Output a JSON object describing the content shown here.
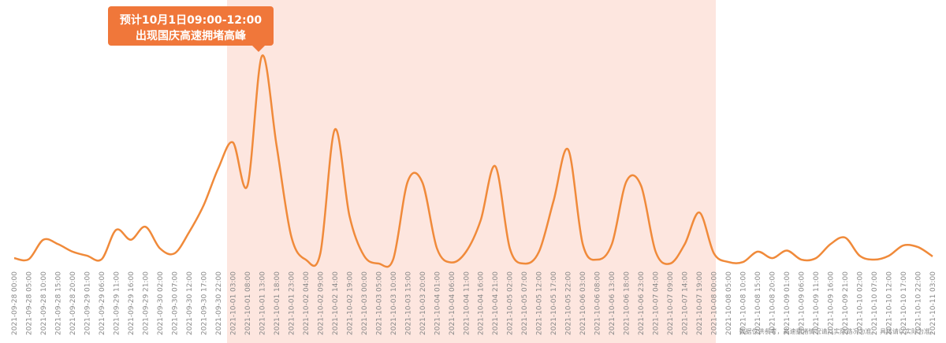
{
  "chart_data": {
    "type": "line",
    "annotation": [
      "预计10月1日09:00-12:00",
      "出现国庆高速拥堵高峰"
    ],
    "note": "数据仅供参考，高速拥堵情况请以实际路况为准。 具体请以实际为准。",
    "categories": [
      "2021-09-28 00:00",
      "2021-09-28 05:00",
      "2021-09-28 10:00",
      "2021-09-28 15:00",
      "2021-09-28 20:00",
      "2021-09-29 01:00",
      "2021-09-29 06:00",
      "2021-09-29 11:00",
      "2021-09-29 16:00",
      "2021-09-29 21:00",
      "2021-09-30 02:00",
      "2021-09-30 07:00",
      "2021-09-30 12:00",
      "2021-09-30 17:00",
      "2021-09-30 22:00",
      "2021-10-01 03:00",
      "2021-10-01 08:00",
      "2021-10-01 13:00",
      "2021-10-01 18:00",
      "2021-10-01 23:00",
      "2021-10-02 04:00",
      "2021-10-02 09:00",
      "2021-10-02 14:00",
      "2021-10-02 19:00",
      "2021-10-03 00:00",
      "2021-10-03 05:00",
      "2021-10-03 10:00",
      "2021-10-03 15:00",
      "2021-10-03 20:00",
      "2021-10-04 01:00",
      "2021-10-04 06:00",
      "2021-10-04 11:00",
      "2021-10-04 16:00",
      "2021-10-04 21:00",
      "2021-10-05 02:00",
      "2021-10-05 07:00",
      "2021-10-05 12:00",
      "2021-10-05 17:00",
      "2021-10-05 22:00",
      "2021-10-06 03:00",
      "2021-10-06 08:00",
      "2021-10-06 13:00",
      "2021-10-06 18:00",
      "2021-10-06 23:00",
      "2021-10-07 04:00",
      "2021-10-07 09:00",
      "2021-10-07 14:00",
      "2021-10-07 19:00",
      "2021-10-08 00:00",
      "2021-10-08 05:00",
      "2021-10-08 10:00",
      "2021-10-08 15:00",
      "2021-10-08 20:00",
      "2021-10-09 01:00",
      "2021-10-09 06:00",
      "2021-10-09 11:00",
      "2021-10-09 16:00",
      "2021-10-09 21:00",
      "2021-10-10 02:00",
      "2021-10-10 07:00",
      "2021-10-10 12:00",
      "2021-10-10 17:00",
      "2021-10-10 22:00",
      "2021-10-11 03:00"
    ],
    "values": [
      2.5,
      2,
      11,
      9,
      5.5,
      3.6,
      2,
      15.6,
      11,
      17,
      7,
      4.7,
      14.5,
      27,
      44,
      56,
      36,
      96,
      54.5,
      12.7,
      1.8,
      4.7,
      62,
      22,
      3.6,
      0,
      2,
      38,
      37.5,
      7,
      0.5,
      5.5,
      20,
      45,
      7,
      0,
      5.5,
      29,
      52.7,
      9,
      1.8,
      9,
      38,
      36,
      5.5,
      0,
      9,
      23.6,
      4.7,
      0.7,
      0.7,
      5.5,
      2.5,
      6,
      1.8,
      2.5,
      9,
      12,
      3.6,
      1.8,
      3.6,
      8.4,
      7.6,
      3.3
    ],
    "color": "#f08a3a",
    "ylim": [
      0,
      100
    ]
  }
}
